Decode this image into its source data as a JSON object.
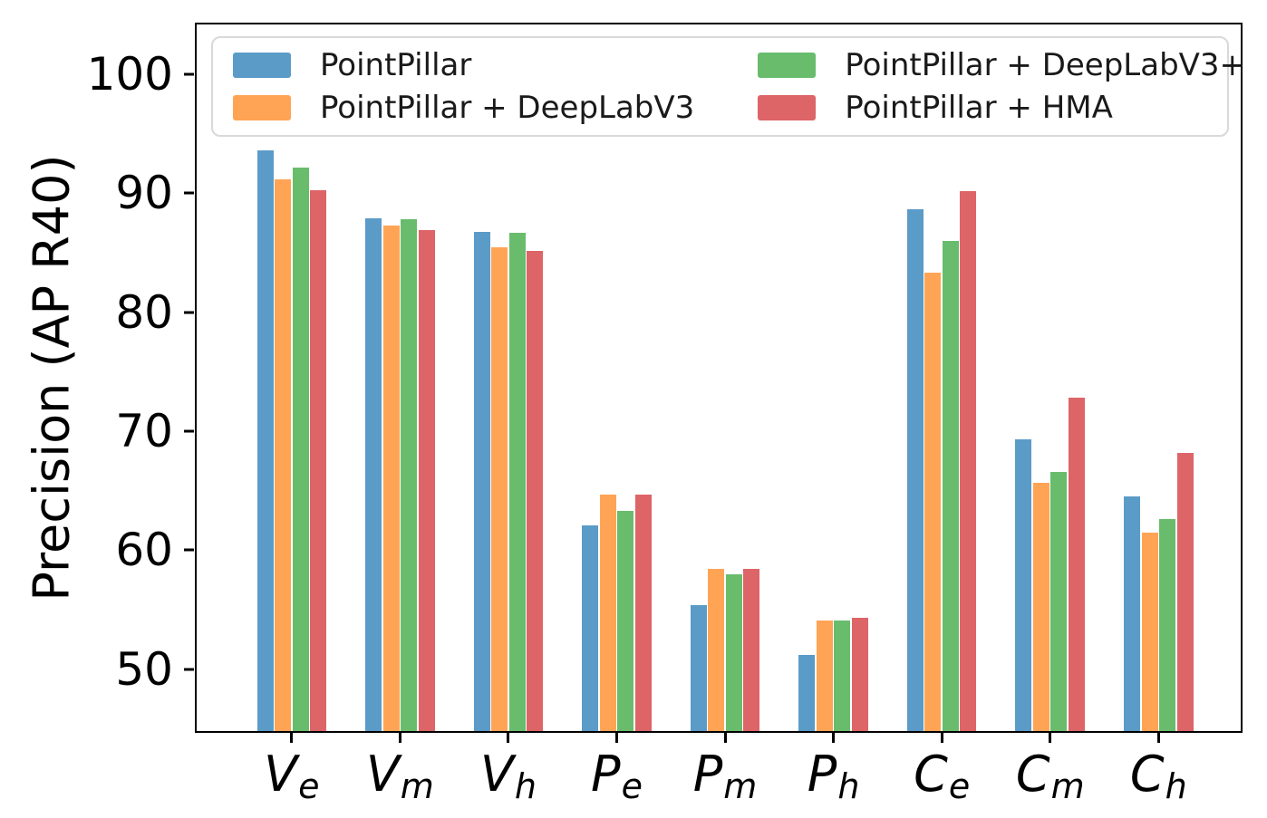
{
  "figure": {
    "background": "#ffffff",
    "axis_color": "#000000",
    "legend_border_color": "#d9d9d9"
  },
  "chart_data": {
    "type": "bar",
    "title": "",
    "xlabel": "",
    "ylabel": "Precision (AP R40)",
    "ylim": [
      44.8,
      104.2
    ],
    "yticks": [
      50,
      60,
      70,
      80,
      90,
      100
    ],
    "grid": false,
    "legend_position": "upper center inside plot, 2 columns",
    "categories": [
      {
        "main": "V",
        "sub": "e"
      },
      {
        "main": "V",
        "sub": "m"
      },
      {
        "main": "V",
        "sub": "h"
      },
      {
        "main": "P",
        "sub": "e"
      },
      {
        "main": "P",
        "sub": "m"
      },
      {
        "main": "P",
        "sub": "h"
      },
      {
        "main": "C",
        "sub": "e"
      },
      {
        "main": "C",
        "sub": "m"
      },
      {
        "main": "C",
        "sub": "h"
      }
    ],
    "series": [
      {
        "name": "PointPillar",
        "color": "#5B9BC8",
        "values": [
          93.6,
          87.9,
          86.8,
          62.1,
          55.4,
          51.2,
          88.7,
          69.3,
          64.5
        ]
      },
      {
        "name": "PointPillar + DeepLabV3",
        "color": "#FFA455",
        "values": [
          91.2,
          87.3,
          85.5,
          64.7,
          58.4,
          54.1,
          83.3,
          65.7,
          61.5
        ]
      },
      {
        "name": "PointPillar + DeepLabV3+",
        "color": "#68BC6C",
        "values": [
          92.2,
          87.8,
          86.7,
          63.3,
          58.0,
          54.1,
          86.0,
          66.6,
          62.6
        ]
      },
      {
        "name": "PointPillar + HMA",
        "color": "#DD6467",
        "values": [
          90.3,
          86.9,
          85.2,
          64.7,
          58.4,
          54.3,
          90.2,
          72.8,
          68.2
        ]
      }
    ]
  }
}
